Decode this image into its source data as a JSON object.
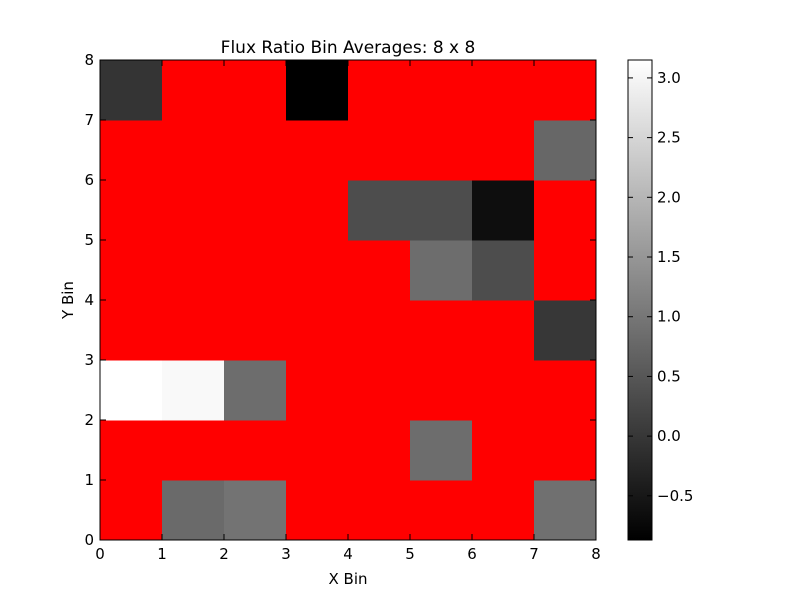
{
  "chart_data": {
    "type": "heatmap",
    "title": "Flux Ratio Bin Averages: 8 x 8",
    "xlabel": "X Bin",
    "ylabel": "Y Bin",
    "xlim": [
      0,
      8
    ],
    "ylim": [
      0,
      8
    ],
    "x_ticks": [
      "0",
      "1",
      "2",
      "3",
      "4",
      "5",
      "6",
      "7",
      "8"
    ],
    "y_ticks": [
      "0",
      "1",
      "2",
      "3",
      "4",
      "5",
      "6",
      "7",
      "8"
    ],
    "masked_color": "#ff0000",
    "colormap": "gray",
    "colorbar": {
      "vmin": -0.87,
      "vmax": 3.15,
      "ticks": [
        -0.5,
        0.0,
        0.5,
        1.0,
        1.5,
        2.0,
        2.5,
        3.0
      ],
      "tick_labels": [
        "−0.5",
        "0.0",
        "0.5",
        "1.0",
        "1.5",
        "2.0",
        "2.5",
        "3.0"
      ]
    },
    "rows_bottom_to_top": [
      [
        null,
        0.8,
        0.95,
        null,
        null,
        null,
        null,
        0.9
      ],
      [
        null,
        null,
        null,
        null,
        null,
        0.85,
        null,
        null
      ],
      [
        3.15,
        3.05,
        0.85,
        null,
        null,
        null,
        null,
        null
      ],
      [
        null,
        null,
        null,
        null,
        null,
        null,
        null,
        0.0
      ],
      [
        null,
        null,
        null,
        null,
        null,
        0.85,
        0.35,
        null
      ],
      [
        null,
        null,
        null,
        null,
        0.35,
        0.35,
        -0.65,
        null
      ],
      [
        null,
        null,
        null,
        null,
        null,
        null,
        null,
        0.75
      ],
      [
        -0.05,
        null,
        null,
        -0.87,
        null,
        null,
        null,
        null
      ]
    ]
  }
}
